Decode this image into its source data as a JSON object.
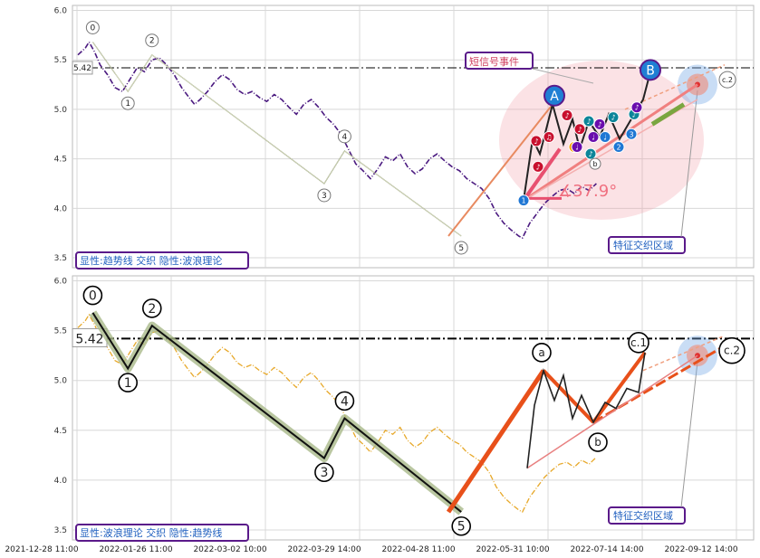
{
  "chart_data": [
    {
      "type": "line",
      "panel": "top",
      "ylim": [
        3.4,
        6.05
      ],
      "yticks": [
        "6.0",
        "5.5",
        "5.0",
        "4.5",
        "4.0",
        "3.5"
      ],
      "grid": true,
      "hline": {
        "value": 5.42,
        "label": "5.42"
      },
      "price_series": [
        [
          0,
          5.55
        ],
        [
          4,
          5.62
        ],
        [
          6,
          5.68
        ],
        [
          9,
          5.58
        ],
        [
          12,
          5.45
        ],
        [
          16,
          5.35
        ],
        [
          20,
          5.22
        ],
        [
          24,
          5.18
        ],
        [
          28,
          5.3
        ],
        [
          32,
          5.42
        ],
        [
          36,
          5.38
        ],
        [
          40,
          5.5
        ],
        [
          44,
          5.52
        ],
        [
          48,
          5.45
        ],
        [
          52,
          5.35
        ],
        [
          56,
          5.22
        ],
        [
          60,
          5.12
        ],
        [
          63,
          5.05
        ],
        [
          66,
          5.1
        ],
        [
          70,
          5.18
        ],
        [
          74,
          5.28
        ],
        [
          78,
          5.35
        ],
        [
          82,
          5.3
        ],
        [
          86,
          5.2
        ],
        [
          90,
          5.15
        ],
        [
          94,
          5.18
        ],
        [
          98,
          5.12
        ],
        [
          102,
          5.08
        ],
        [
          106,
          5.15
        ],
        [
          110,
          5.1
        ],
        [
          114,
          5.02
        ],
        [
          118,
          4.95
        ],
        [
          122,
          5.05
        ],
        [
          126,
          5.1
        ],
        [
          130,
          5.02
        ],
        [
          134,
          4.92
        ],
        [
          138,
          4.85
        ],
        [
          142,
          4.75
        ],
        [
          146,
          4.6
        ],
        [
          150,
          4.45
        ],
        [
          154,
          4.38
        ],
        [
          158,
          4.3
        ],
        [
          162,
          4.4
        ],
        [
          166,
          4.52
        ],
        [
          170,
          4.48
        ],
        [
          174,
          4.55
        ],
        [
          178,
          4.42
        ],
        [
          182,
          4.35
        ],
        [
          186,
          4.4
        ],
        [
          190,
          4.5
        ],
        [
          194,
          4.55
        ],
        [
          198,
          4.48
        ],
        [
          202,
          4.42
        ],
        [
          206,
          4.38
        ],
        [
          210,
          4.3
        ],
        [
          214,
          4.25
        ],
        [
          218,
          4.2
        ],
        [
          222,
          4.1
        ],
        [
          226,
          3.95
        ],
        [
          230,
          3.85
        ],
        [
          234,
          3.78
        ],
        [
          238,
          3.72
        ],
        [
          240,
          3.7
        ],
        [
          244,
          3.85
        ],
        [
          248,
          3.95
        ],
        [
          252,
          4.05
        ],
        [
          256,
          4.12
        ],
        [
          260,
          4.18
        ],
        [
          264,
          4.2
        ],
        [
          268,
          4.15
        ],
        [
          272,
          4.22
        ],
        [
          276,
          4.18
        ],
        [
          280,
          4.25
        ]
      ],
      "wave": {
        "points": [
          [
            8,
            5.68,
            "0"
          ],
          [
            27,
            5.18,
            "1"
          ],
          [
            40,
            5.55,
            "2"
          ],
          [
            133,
            4.25,
            "3"
          ],
          [
            144,
            4.58,
            "4"
          ],
          [
            207,
            3.72,
            "5"
          ]
        ]
      },
      "wave_labels_extra": [
        [
          "A",
          5.1
        ],
        [
          "B",
          5.38
        ],
        [
          "c.2",
          5.3
        ],
        [
          "b",
          4.5
        ]
      ],
      "annotations": {
        "event": "短信号事件",
        "angle": "∡37.9°",
        "zone": "特征交织区域",
        "mode": "显性:趋势线 交织 隐性:波浪理论"
      },
      "badges": [
        [
          "1",
          "#1f77d4",
          4.08
        ],
        [
          "♪",
          "#c8102e",
          4.42
        ],
        [
          "♪",
          "#c8102e",
          4.68
        ],
        [
          "♫",
          "#c8102e",
          4.72
        ],
        [
          "♪",
          "#c8102e",
          4.94
        ],
        [
          "♪",
          "#f59f00",
          4.62
        ],
        [
          "♪",
          "#c8102e",
          4.8
        ],
        [
          "♩",
          "#6a0dad",
          4.62
        ],
        [
          "♪",
          "#0c8599",
          4.88
        ],
        [
          "♩",
          "#6a0dad",
          4.72
        ],
        [
          "♪",
          "#0c8599",
          4.55
        ],
        [
          "♪",
          "#6a0dad",
          4.85
        ],
        [
          "♩",
          "#1f77d4",
          4.72
        ],
        [
          "♪",
          "#0c8599",
          4.92
        ],
        [
          "2",
          "#1f77d4",
          4.62
        ],
        [
          "3",
          "#1f77d4",
          4.75
        ],
        [
          "♪",
          "#0c8599",
          4.95
        ],
        [
          "♪",
          "#6a0dad",
          5.02
        ]
      ]
    },
    {
      "type": "line",
      "panel": "bottom",
      "ylim": [
        3.4,
        6.05
      ],
      "yticks": [
        "6.0",
        "5.5",
        "5.0",
        "4.5",
        "4.0",
        "3.5"
      ],
      "grid": true,
      "hline": {
        "value": 5.42,
        "label": "5.42"
      },
      "xticks": [
        "2021-12-28 11:00",
        "2022-01-26 11:00",
        "2022-03-02 10:00",
        "2022-03-29 14:00",
        "2022-04-28 11:00",
        "2022-05-31 10:00",
        "2022-07-14 14:00",
        "2022-09-12 14:00"
      ],
      "wave": {
        "points": [
          [
            8,
            5.68,
            "0"
          ],
          [
            27,
            5.12,
            "1"
          ],
          [
            40,
            5.55,
            "2"
          ],
          [
            133,
            4.22,
            "3"
          ],
          [
            144,
            4.62,
            "4"
          ],
          [
            207,
            3.68,
            "5"
          ]
        ]
      },
      "wave_labels_extra": [
        [
          "a",
          5.18
        ],
        [
          "b",
          4.4
        ],
        [
          "c.1",
          5.35
        ],
        [
          "c.2",
          5.3
        ]
      ],
      "annotations": {
        "zone": "特征交织区域",
        "mode": "显性:波浪理论 交织 隐性:趋势线"
      }
    }
  ]
}
